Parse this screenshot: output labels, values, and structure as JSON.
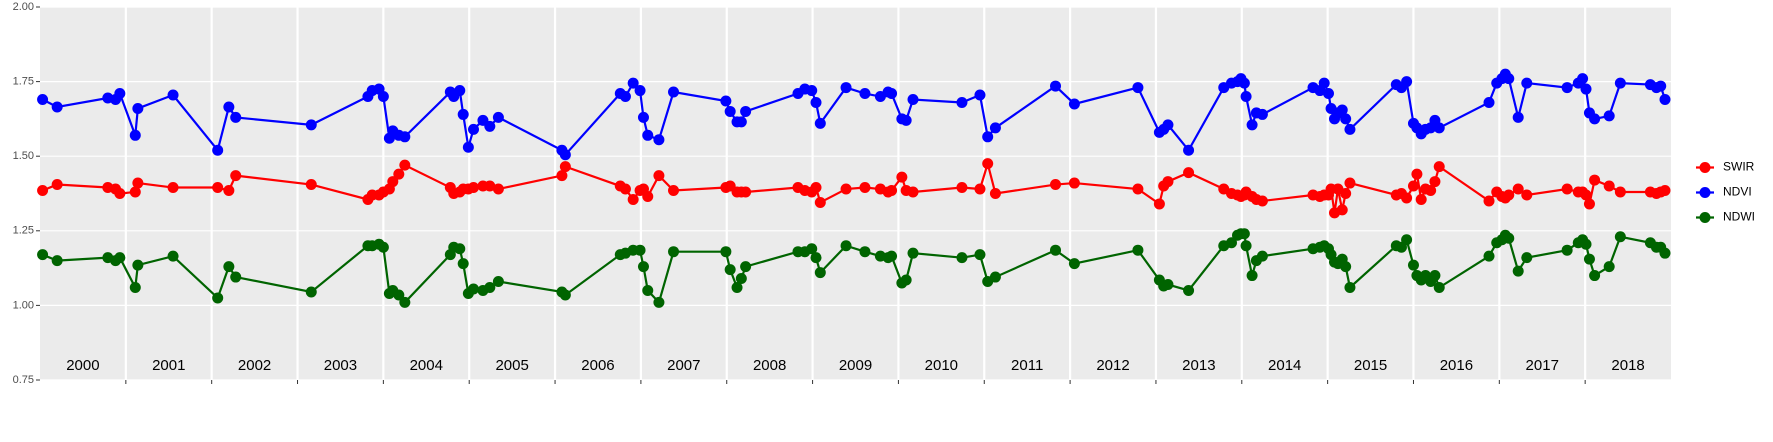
{
  "chart_data": {
    "type": "line",
    "x": [
      2000.03,
      2000.2,
      2000.79,
      2000.88,
      2000.93,
      2001.11,
      2001.14,
      2001.55,
      2002.07,
      2002.2,
      2002.28,
      2003.16,
      2003.82,
      2003.87,
      2003.95,
      2004.0,
      2004.07,
      2004.11,
      2004.18,
      2004.25,
      2004.78,
      2004.82,
      2004.89,
      2004.93,
      2004.99,
      2005.05,
      2005.16,
      2005.24,
      2005.34,
      2006.08,
      2006.12,
      2006.76,
      2006.82,
      2006.91,
      2006.99,
      2007.03,
      2007.08,
      2007.21,
      2007.38,
      2007.99,
      2008.04,
      2008.12,
      2008.17,
      2008.22,
      2008.83,
      2008.91,
      2008.99,
      2009.04,
      2009.09,
      2009.39,
      2009.61,
      2009.79,
      2009.88,
      2009.92,
      2010.04,
      2010.09,
      2010.17,
      2010.74,
      2010.95,
      2011.04,
      2011.13,
      2011.83,
      2012.05,
      2012.79,
      2013.04,
      2013.09,
      2013.14,
      2013.38,
      2013.79,
      2013.88,
      2013.95,
      2013.99,
      2014.03,
      2014.05,
      2014.12,
      2014.17,
      2014.24,
      2014.83,
      2014.91,
      2014.96,
      2015.01,
      2015.04,
      2015.08,
      2015.12,
      2015.17,
      2015.21,
      2015.26,
      2015.8,
      2015.86,
      2015.92,
      2016.0,
      2016.04,
      2016.09,
      2016.14,
      2016.2,
      2016.25,
      2016.3,
      2016.88,
      2016.97,
      2017.03,
      2017.07,
      2017.11,
      2017.22,
      2017.32,
      2017.79,
      2017.92,
      2017.97,
      2018.01,
      2018.05,
      2018.11,
      2018.28,
      2018.41,
      2018.76,
      2018.83,
      2018.88,
      2018.93
    ],
    "series": [
      {
        "name": "SWIR",
        "color": "#ff0000",
        "values": [
          1.385,
          1.405,
          1.395,
          1.39,
          1.375,
          1.38,
          1.41,
          1.395,
          1.395,
          1.385,
          1.435,
          1.405,
          1.355,
          1.37,
          1.37,
          1.38,
          1.39,
          1.415,
          1.44,
          1.47,
          1.395,
          1.375,
          1.38,
          1.39,
          1.39,
          1.395,
          1.4,
          1.4,
          1.39,
          1.435,
          1.465,
          1.4,
          1.39,
          1.355,
          1.385,
          1.39,
          1.365,
          1.435,
          1.385,
          1.395,
          1.4,
          1.38,
          1.38,
          1.38,
          1.395,
          1.385,
          1.38,
          1.395,
          1.345,
          1.39,
          1.395,
          1.39,
          1.38,
          1.385,
          1.43,
          1.385,
          1.38,
          1.395,
          1.39,
          1.475,
          1.375,
          1.405,
          1.41,
          1.39,
          1.34,
          1.4,
          1.415,
          1.445,
          1.39,
          1.375,
          1.37,
          1.365,
          1.37,
          1.38,
          1.365,
          1.355,
          1.35,
          1.37,
          1.365,
          1.37,
          1.37,
          1.39,
          1.31,
          1.39,
          1.32,
          1.375,
          1.41,
          1.37,
          1.375,
          1.36,
          1.4,
          1.44,
          1.355,
          1.39,
          1.385,
          1.415,
          1.465,
          1.35,
          1.38,
          1.365,
          1.36,
          1.37,
          1.39,
          1.37,
          1.39,
          1.38,
          1.38,
          1.37,
          1.34,
          1.42,
          1.4,
          1.38,
          1.38,
          1.375,
          1.38,
          1.385
        ]
      },
      {
        "name": "NDVI",
        "color": "#0000ff",
        "values": [
          1.69,
          1.665,
          1.695,
          1.69,
          1.71,
          1.57,
          1.66,
          1.705,
          1.52,
          1.665,
          1.63,
          1.605,
          1.7,
          1.72,
          1.725,
          1.7,
          1.56,
          1.585,
          1.57,
          1.565,
          1.715,
          1.7,
          1.72,
          1.64,
          1.53,
          1.59,
          1.62,
          1.6,
          1.63,
          1.52,
          1.505,
          1.71,
          1.7,
          1.745,
          1.72,
          1.63,
          1.57,
          1.555,
          1.715,
          1.685,
          1.65,
          1.615,
          1.615,
          1.65,
          1.71,
          1.725,
          1.72,
          1.68,
          1.61,
          1.73,
          1.71,
          1.7,
          1.715,
          1.71,
          1.625,
          1.62,
          1.69,
          1.68,
          1.705,
          1.565,
          1.595,
          1.735,
          1.675,
          1.73,
          1.58,
          1.59,
          1.605,
          1.52,
          1.73,
          1.745,
          1.75,
          1.76,
          1.745,
          1.7,
          1.605,
          1.645,
          1.64,
          1.73,
          1.72,
          1.745,
          1.71,
          1.66,
          1.625,
          1.645,
          1.655,
          1.625,
          1.59,
          1.74,
          1.73,
          1.75,
          1.61,
          1.595,
          1.575,
          1.59,
          1.595,
          1.62,
          1.595,
          1.68,
          1.745,
          1.76,
          1.775,
          1.76,
          1.63,
          1.745,
          1.73,
          1.745,
          1.76,
          1.725,
          1.645,
          1.625,
          1.635,
          1.745,
          1.74,
          1.73,
          1.735,
          1.69
        ]
      },
      {
        "name": "NDWI",
        "color": "#006400",
        "values": [
          1.17,
          1.15,
          1.16,
          1.15,
          1.16,
          1.06,
          1.135,
          1.165,
          1.025,
          1.13,
          1.095,
          1.045,
          1.2,
          1.2,
          1.205,
          1.195,
          1.04,
          1.05,
          1.035,
          1.01,
          1.17,
          1.195,
          1.19,
          1.14,
          1.04,
          1.055,
          1.05,
          1.06,
          1.08,
          1.045,
          1.035,
          1.17,
          1.175,
          1.185,
          1.185,
          1.13,
          1.05,
          1.01,
          1.18,
          1.18,
          1.12,
          1.06,
          1.09,
          1.13,
          1.18,
          1.18,
          1.19,
          1.16,
          1.11,
          1.2,
          1.18,
          1.165,
          1.16,
          1.165,
          1.075,
          1.085,
          1.175,
          1.16,
          1.17,
          1.08,
          1.095,
          1.185,
          1.14,
          1.185,
          1.085,
          1.065,
          1.07,
          1.05,
          1.2,
          1.21,
          1.235,
          1.24,
          1.24,
          1.2,
          1.1,
          1.15,
          1.165,
          1.19,
          1.195,
          1.2,
          1.19,
          1.17,
          1.145,
          1.14,
          1.155,
          1.13,
          1.06,
          1.2,
          1.195,
          1.22,
          1.135,
          1.1,
          1.085,
          1.1,
          1.08,
          1.1,
          1.06,
          1.165,
          1.21,
          1.22,
          1.235,
          1.225,
          1.115,
          1.16,
          1.185,
          1.21,
          1.22,
          1.205,
          1.155,
          1.1,
          1.13,
          1.23,
          1.21,
          1.195,
          1.195,
          1.175
        ]
      }
    ],
    "xlim": [
      2000,
      2019
    ],
    "xticks": [
      2001,
      2002,
      2003,
      2004,
      2005,
      2006,
      2007,
      2008,
      2009,
      2010,
      2011,
      2012,
      2013,
      2014,
      2015,
      2016,
      2017,
      2018
    ],
    "year_labels": [
      {
        "value": 2000.5,
        "label": "2000"
      },
      {
        "value": 2001.5,
        "label": "2001"
      },
      {
        "value": 2002.5,
        "label": "2002"
      },
      {
        "value": 2003.5,
        "label": "2003"
      },
      {
        "value": 2004.5,
        "label": "2004"
      },
      {
        "value": 2005.5,
        "label": "2005"
      },
      {
        "value": 2006.5,
        "label": "2006"
      },
      {
        "value": 2007.5,
        "label": "2007"
      },
      {
        "value": 2008.5,
        "label": "2008"
      },
      {
        "value": 2009.5,
        "label": "2009"
      },
      {
        "value": 2010.5,
        "label": "2010"
      },
      {
        "value": 2011.5,
        "label": "2011"
      },
      {
        "value": 2012.5,
        "label": "2012"
      },
      {
        "value": 2013.5,
        "label": "2013"
      },
      {
        "value": 2014.5,
        "label": "2014"
      },
      {
        "value": 2015.5,
        "label": "2015"
      },
      {
        "value": 2016.5,
        "label": "2016"
      },
      {
        "value": 2017.5,
        "label": "2017"
      },
      {
        "value": 2018.5,
        "label": "2018"
      }
    ],
    "ylim": [
      0.75,
      2.0
    ],
    "yticks": [
      0.75,
      {
        "value": 1.0,
        "label": "1.00"
      },
      1.25,
      {
        "value": 1.5,
        "label": "1.50"
      },
      1.75,
      {
        "value": 2.0,
        "label": "2.00"
      }
    ],
    "grid": true,
    "legend": "right"
  }
}
